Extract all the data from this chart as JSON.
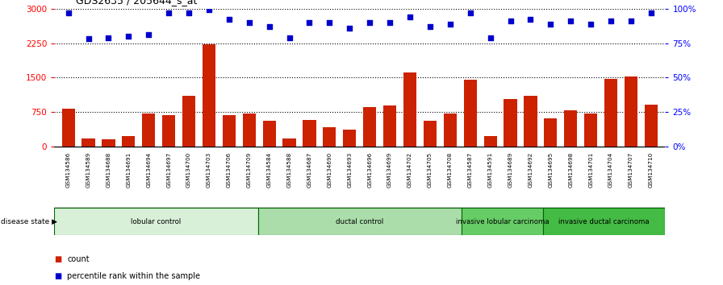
{
  "title": "GDS2635 / 205644_s_at",
  "samples": [
    "GSM134586",
    "GSM134589",
    "GSM134688",
    "GSM134691",
    "GSM134694",
    "GSM134697",
    "GSM134700",
    "GSM134703",
    "GSM134706",
    "GSM134709",
    "GSM134584",
    "GSM134588",
    "GSM134687",
    "GSM134690",
    "GSM134693",
    "GSM134696",
    "GSM134699",
    "GSM134702",
    "GSM134705",
    "GSM134708",
    "GSM134587",
    "GSM134591",
    "GSM134689",
    "GSM134692",
    "GSM134695",
    "GSM134698",
    "GSM134701",
    "GSM134704",
    "GSM134707",
    "GSM134710"
  ],
  "bar_values": [
    820,
    175,
    170,
    230,
    730,
    680,
    1100,
    2220,
    680,
    730,
    560,
    175,
    590,
    430,
    380,
    870,
    900,
    1620,
    560,
    730,
    1460,
    230,
    1040,
    1100,
    620,
    800,
    720,
    1470,
    1530,
    920
  ],
  "blue_values": [
    97,
    78,
    79,
    80,
    81,
    97,
    97,
    99,
    92,
    90,
    87,
    79,
    90,
    90,
    86,
    90,
    90,
    94,
    87,
    89,
    97,
    79,
    91,
    92,
    89,
    91,
    89,
    91,
    91,
    97
  ],
  "groups": [
    {
      "label": "lobular control",
      "start": 0,
      "end": 9,
      "color": "#d8f0d8"
    },
    {
      "label": "ductal control",
      "start": 10,
      "end": 19,
      "color": "#aaddaa"
    },
    {
      "label": "invasive lobular carcinoma",
      "start": 20,
      "end": 23,
      "color": "#66cc66"
    },
    {
      "label": "invasive ductal carcinoma",
      "start": 24,
      "end": 29,
      "color": "#44bb44"
    }
  ],
  "bar_color": "#cc2200",
  "dot_color": "#0000cc",
  "ylim_left": [
    0,
    3000
  ],
  "ylim_right": [
    0,
    100
  ],
  "yticks_left": [
    0,
    750,
    1500,
    2250,
    3000
  ],
  "yticks_right": [
    0,
    25,
    50,
    75,
    100
  ],
  "plot_bg": "#ffffff",
  "tick_area_bg": "#c8c8c8",
  "disease_state_label": "disease state",
  "legend_count": "count",
  "legend_percentile": "percentile rank within the sample",
  "group_border_color": "#006600"
}
